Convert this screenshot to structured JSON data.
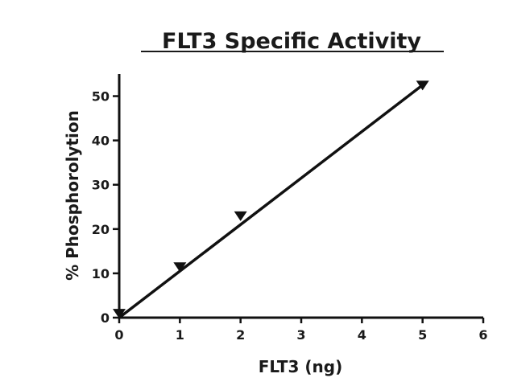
{
  "chart_data": {
    "type": "scatter",
    "title": "FLT3 Specific Activity",
    "xlabel": "FLT3 (ng)",
    "ylabel": "% Phosphorolytion",
    "xlim": [
      0,
      6
    ],
    "ylim": [
      0,
      55
    ],
    "xticks": [
      0,
      1,
      2,
      3,
      4,
      5,
      6
    ],
    "yticks": [
      0,
      10,
      20,
      30,
      40,
      50
    ],
    "grid": false,
    "marker": "down-triangle",
    "series": [
      {
        "x": [
          0,
          1,
          2,
          5
        ],
        "y": [
          1,
          11.5,
          23,
          52.5
        ],
        "fit_line": {
          "x": [
            0,
            5
          ],
          "y": [
            0,
            52.5
          ]
        }
      }
    ],
    "colors": {
      "line": "#111111",
      "marker": "#111111",
      "axis": "#111111"
    }
  }
}
